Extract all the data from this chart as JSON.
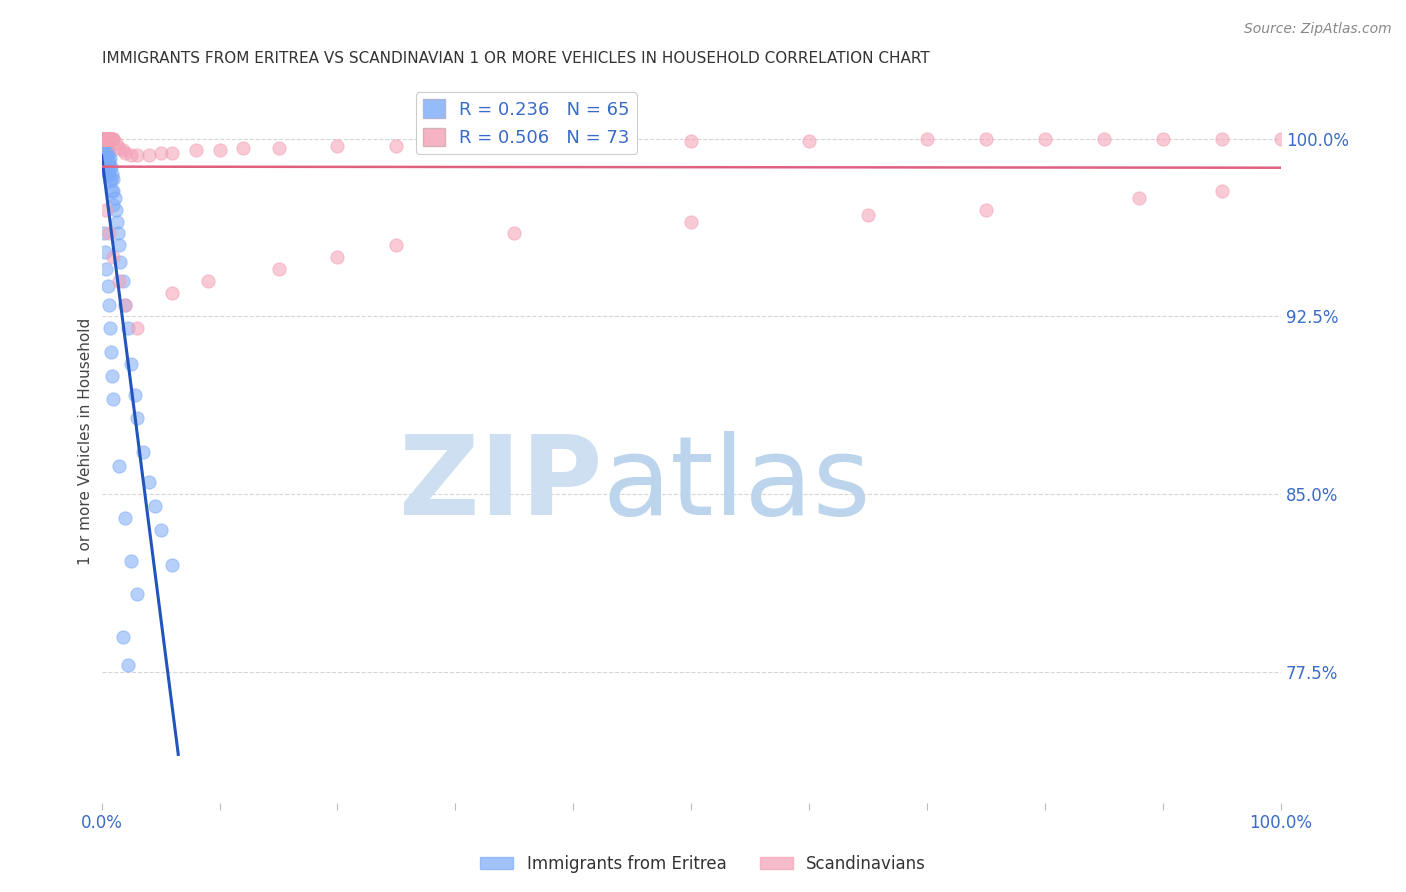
{
  "title": "IMMIGRANTS FROM ERITREA VS SCANDINAVIAN 1 OR MORE VEHICLES IN HOUSEHOLD CORRELATION CHART",
  "source": "Source: ZipAtlas.com",
  "ylabel": "1 or more Vehicles in Household",
  "ytick_labels": [
    "100.0%",
    "92.5%",
    "85.0%",
    "77.5%"
  ],
  "ytick_values": [
    1.0,
    0.925,
    0.85,
    0.775
  ],
  "R_eritrea": 0.236,
  "N_eritrea": 65,
  "R_scand": 0.506,
  "N_scand": 73,
  "eritrea_color": "#7baaf7",
  "scand_color": "#f4a0b5",
  "eritrea_line_color": "#2255bb",
  "scand_line_color": "#e06080",
  "background_color": "#ffffff",
  "grid_color": "#cccccc",
  "axis_label_color": "#3a6bc9",
  "scatter_alpha": 0.55,
  "scatter_size": 90,
  "xlim": [
    0.0,
    1.0
  ],
  "ylim": [
    0.72,
    1.025
  ],
  "eritrea_x": [
    0.001,
    0.001,
    0.001,
    0.002,
    0.002,
    0.002,
    0.002,
    0.003,
    0.003,
    0.003,
    0.003,
    0.003,
    0.004,
    0.004,
    0.004,
    0.004,
    0.005,
    0.005,
    0.005,
    0.005,
    0.006,
    0.006,
    0.006,
    0.007,
    0.007,
    0.007,
    0.008,
    0.008,
    0.009,
    0.009,
    0.01,
    0.01,
    0.01,
    0.011,
    0.012,
    0.013,
    0.014,
    0.015,
    0.016,
    0.018,
    0.02,
    0.022,
    0.025,
    0.028,
    0.03,
    0.035,
    0.04,
    0.045,
    0.05,
    0.06,
    0.002,
    0.003,
    0.004,
    0.005,
    0.006,
    0.007,
    0.008,
    0.009,
    0.01,
    0.015,
    0.02,
    0.025,
    0.03,
    0.018,
    0.022
  ],
  "eritrea_y": [
    1.0,
    1.0,
    0.998,
    1.0,
    1.0,
    0.998,
    0.995,
    1.0,
    0.998,
    0.996,
    0.993,
    0.99,
    0.998,
    0.995,
    0.992,
    0.988,
    0.996,
    0.993,
    0.99,
    0.985,
    0.994,
    0.99,
    0.985,
    0.992,
    0.988,
    0.982,
    0.988,
    0.983,
    0.985,
    0.978,
    0.983,
    0.978,
    0.972,
    0.975,
    0.97,
    0.965,
    0.96,
    0.955,
    0.948,
    0.94,
    0.93,
    0.92,
    0.905,
    0.892,
    0.882,
    0.868,
    0.855,
    0.845,
    0.835,
    0.82,
    0.96,
    0.952,
    0.945,
    0.938,
    0.93,
    0.92,
    0.91,
    0.9,
    0.89,
    0.862,
    0.84,
    0.822,
    0.808,
    0.79,
    0.778
  ],
  "scand_x": [
    0.001,
    0.001,
    0.001,
    0.002,
    0.002,
    0.002,
    0.002,
    0.003,
    0.003,
    0.003,
    0.003,
    0.004,
    0.004,
    0.004,
    0.005,
    0.005,
    0.005,
    0.006,
    0.006,
    0.006,
    0.007,
    0.007,
    0.007,
    0.008,
    0.008,
    0.008,
    0.009,
    0.009,
    0.01,
    0.01,
    0.012,
    0.015,
    0.018,
    0.02,
    0.025,
    0.03,
    0.04,
    0.05,
    0.06,
    0.08,
    0.1,
    0.12,
    0.15,
    0.2,
    0.25,
    0.3,
    0.4,
    0.5,
    0.6,
    0.7,
    0.75,
    0.8,
    0.85,
    0.9,
    0.95,
    1.0,
    0.004,
    0.006,
    0.01,
    0.015,
    0.02,
    0.03,
    0.06,
    0.09,
    0.15,
    0.2,
    0.25,
    0.35,
    0.5,
    0.65,
    0.75,
    0.88,
    0.95
  ],
  "scand_y": [
    1.0,
    1.0,
    1.0,
    1.0,
    1.0,
    1.0,
    1.0,
    1.0,
    1.0,
    1.0,
    1.0,
    1.0,
    1.0,
    1.0,
    1.0,
    1.0,
    1.0,
    1.0,
    1.0,
    1.0,
    1.0,
    1.0,
    1.0,
    1.0,
    1.0,
    1.0,
    1.0,
    1.0,
    1.0,
    1.0,
    0.998,
    0.996,
    0.995,
    0.994,
    0.993,
    0.993,
    0.993,
    0.994,
    0.994,
    0.995,
    0.995,
    0.996,
    0.996,
    0.997,
    0.997,
    0.998,
    0.998,
    0.999,
    0.999,
    1.0,
    1.0,
    1.0,
    1.0,
    1.0,
    1.0,
    1.0,
    0.97,
    0.96,
    0.95,
    0.94,
    0.93,
    0.92,
    0.935,
    0.94,
    0.945,
    0.95,
    0.955,
    0.96,
    0.965,
    0.968,
    0.97,
    0.975,
    0.978
  ]
}
